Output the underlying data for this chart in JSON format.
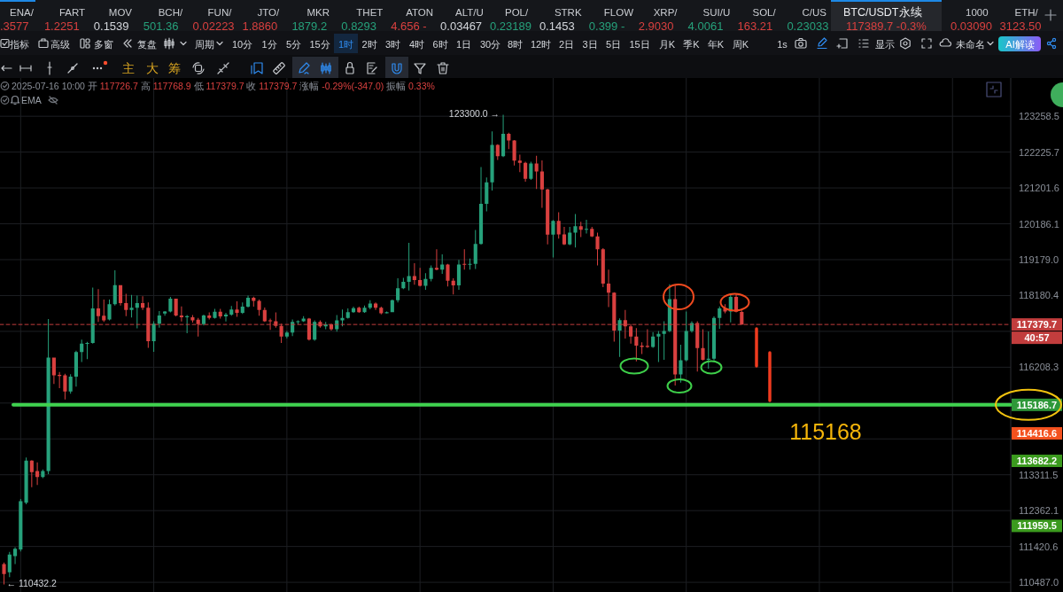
{
  "chart_data": {
    "type": "candlestick",
    "title": "BTC/USDT永续",
    "subtitle": "2025-07-16 10:00 开 117726.7 高 117768.9 低 117379.7 收 117379.7 涨幅 -0.29%(-347.0) 振幅 0.33%",
    "categories": [
      null,
      null,
      null,
      null,
      null,
      null,
      null,
      null,
      null,
      null,
      null,
      null,
      null,
      null,
      null,
      null,
      null,
      null,
      null,
      null,
      null,
      null,
      null,
      null,
      null,
      null,
      null,
      null,
      null,
      null,
      null,
      null,
      null,
      null,
      null,
      null,
      null,
      null,
      null,
      null,
      null,
      null,
      null,
      null,
      null,
      null,
      null,
      null,
      null,
      null,
      null,
      null,
      null,
      null,
      null,
      null,
      null,
      null,
      null,
      null,
      null,
      null,
      null,
      null,
      null,
      null,
      null,
      null,
      null,
      null,
      null,
      null,
      null,
      null,
      null,
      null,
      null,
      null,
      null,
      null,
      null,
      null,
      null,
      null,
      null,
      null,
      null,
      null,
      null,
      null,
      null,
      null,
      null,
      null,
      null,
      null,
      null,
      null,
      null,
      null,
      null,
      null,
      null,
      null,
      null,
      null,
      null,
      null,
      null,
      null,
      null,
      null,
      null,
      null,
      null,
      null,
      null,
      null,
      null,
      null,
      null,
      null,
      null,
      null,
      null,
      null,
      null,
      null,
      null,
      null,
      null,
      null,
      null,
      null,
      null,
      null,
      null,
      null,
      null,
      null,
      null,
      null,
      null,
      null,
      null,
      null,
      null,
      null,
      null,
      null,
      null,
      null,
      null,
      null,
      null,
      null,
      null,
      null,
      null,
      null,
      null,
      null,
      null,
      null,
      null,
      null,
      null,
      null,
      null,
      null,
      null,
      null,
      null,
      null,
      null,
      null,
      null,
      null,
      null,
      null,
      null,
      null
    ],
    "ohlc": [
      [
        110960,
        111000,
        110432.2,
        110700
      ],
      [
        110750,
        111280,
        110620,
        111210
      ],
      [
        111170,
        111400,
        110960,
        111360
      ],
      [
        111340,
        112670,
        111290,
        112610
      ],
      [
        112570,
        113770,
        112530,
        113690
      ],
      [
        113690,
        113700,
        112980,
        113380
      ],
      [
        113410,
        113640,
        113040,
        113250
      ],
      [
        113250,
        113450,
        113220,
        113410
      ],
      [
        113410,
        117530,
        113330,
        116470
      ],
      [
        116470,
        116470,
        115750,
        115990
      ],
      [
        116000,
        116080,
        115640,
        115970
      ],
      [
        115990,
        116030,
        115330,
        115550
      ],
      [
        115550,
        116020,
        115490,
        115950
      ],
      [
        115950,
        116660,
        115680,
        116620
      ],
      [
        116620,
        116960,
        116350,
        116850
      ],
      [
        116850,
        116900,
        116430,
        116870
      ],
      [
        116870,
        118400,
        116850,
        117820
      ],
      [
        117820,
        118360,
        117450,
        117610
      ],
      [
        117620,
        118070,
        117450,
        117490
      ],
      [
        117520,
        118070,
        117490,
        117940
      ],
      [
        117940,
        118880,
        117900,
        118470
      ],
      [
        118470,
        118470,
        117900,
        117970
      ],
      [
        117970,
        118230,
        117610,
        117780
      ],
      [
        117780,
        118200,
        117570,
        117840
      ],
      [
        117840,
        118180,
        117270,
        117970
      ],
      [
        117970,
        118160,
        117780,
        117840
      ],
      [
        117840,
        117990,
        116740,
        116920
      ],
      [
        116920,
        117470,
        116630,
        117400
      ],
      [
        117400,
        117750,
        117290,
        117630
      ],
      [
        117680,
        117750,
        117620,
        117740
      ],
      [
        117740,
        118140,
        117710,
        118090
      ],
      [
        118090,
        118090,
        117600,
        117630
      ],
      [
        117630,
        117880,
        117460,
        117580
      ],
      [
        117580,
        117640,
        117140,
        117610
      ],
      [
        117580,
        117640,
        117430,
        117490
      ],
      [
        117510,
        117560,
        117050,
        117390
      ],
      [
        117390,
        117650,
        117350,
        117630
      ],
      [
        117630,
        117710,
        117520,
        117560
      ],
      [
        117560,
        117810,
        117540,
        117730
      ],
      [
        117730,
        117810,
        117540,
        117600
      ],
      [
        117600,
        117700,
        117460,
        117650
      ],
      [
        117650,
        117890,
        117620,
        117790
      ],
      [
        117790,
        118020,
        117590,
        117700
      ],
      [
        117700,
        117990,
        117670,
        117870
      ],
      [
        117870,
        118180,
        117850,
        118120
      ],
      [
        118120,
        118150,
        117870,
        118030
      ],
      [
        118030,
        118070,
        117620,
        117780
      ],
      [
        117780,
        117850,
        117450,
        117470
      ],
      [
        117490,
        117540,
        117230,
        117470
      ],
      [
        117470,
        117710,
        117290,
        117340
      ],
      [
        117340,
        117400,
        116870,
        117050
      ],
      [
        117050,
        117200,
        117000,
        117160
      ],
      [
        117160,
        117520,
        117060,
        117450
      ],
      [
        117450,
        117490,
        117380,
        117470
      ],
      [
        117470,
        117610,
        117450,
        117540
      ],
      [
        117540,
        117560,
        116940,
        116960
      ],
      [
        116960,
        117490,
        116930,
        117450
      ],
      [
        117450,
        117490,
        117290,
        117330
      ],
      [
        117330,
        117450,
        117250,
        117380
      ],
      [
        117380,
        117400,
        117210,
        117250
      ],
      [
        117250,
        117640,
        117180,
        117490
      ],
      [
        117490,
        117790,
        117330,
        117560
      ],
      [
        117560,
        117820,
        117540,
        117720
      ],
      [
        117720,
        117870,
        117700,
        117830
      ],
      [
        117840,
        117870,
        117700,
        117720
      ],
      [
        117720,
        117900,
        117700,
        117840
      ],
      [
        117840,
        118050,
        117800,
        117960
      ],
      [
        117960,
        117990,
        117780,
        117840
      ],
      [
        117840,
        117870,
        117660,
        117690
      ],
      [
        117690,
        117740,
        117680,
        117720
      ],
      [
        117720,
        118070,
        117720,
        118050
      ],
      [
        118050,
        118660,
        117990,
        118380
      ],
      [
        118380,
        118670,
        118360,
        118560
      ],
      [
        118560,
        119650,
        118320,
        118720
      ],
      [
        118720,
        119080,
        118480,
        118610
      ],
      [
        118610,
        118950,
        118430,
        118450
      ],
      [
        118450,
        118800,
        118340,
        118640
      ],
      [
        118640,
        119020,
        118570,
        118950
      ],
      [
        118950,
        119470,
        118880,
        118900
      ],
      [
        118900,
        119330,
        118780,
        119040
      ],
      [
        119040,
        119060,
        118430,
        118590
      ],
      [
        118590,
        118660,
        118210,
        118460
      ],
      [
        118460,
        119170,
        118340,
        119040
      ],
      [
        119060,
        119470,
        118900,
        119040
      ],
      [
        119040,
        119210,
        118900,
        119060
      ],
      [
        119060,
        120010,
        118920,
        119620
      ],
      [
        119620,
        121800,
        119600,
        120750
      ],
      [
        120750,
        121500,
        120540,
        121360
      ],
      [
        121360,
        122820,
        121130,
        122430
      ],
      [
        122430,
        122450,
        122000,
        122110
      ],
      [
        122110,
        123300,
        122080,
        122750
      ],
      [
        122750,
        122780,
        122310,
        122560
      ],
      [
        122560,
        122570,
        121840,
        121980
      ],
      [
        121980,
        122150,
        121650,
        121920
      ],
      [
        121920,
        121950,
        121380,
        121460
      ],
      [
        121460,
        121950,
        121430,
        121900
      ],
      [
        121900,
        122120,
        121170,
        121670
      ],
      [
        121670,
        121990,
        120640,
        121160
      ],
      [
        121160,
        121180,
        119610,
        119880
      ],
      [
        119880,
        120290,
        119240,
        120270
      ],
      [
        120270,
        120510,
        119770,
        119890
      ],
      [
        119890,
        120100,
        119590,
        119610
      ],
      [
        119610,
        120100,
        119580,
        119940
      ],
      [
        119940,
        120460,
        119520,
        120120
      ],
      [
        120120,
        120240,
        119810,
        120020
      ],
      [
        120020,
        120300,
        119910,
        120040
      ],
      [
        120040,
        120100,
        119810,
        119830
      ],
      [
        119830,
        119940,
        119020,
        119470
      ],
      [
        119470,
        119500,
        118410,
        118510
      ],
      [
        118510,
        118900,
        117860,
        118260
      ],
      [
        118260,
        118270,
        116910,
        117210
      ],
      [
        117210,
        117550,
        116490,
        117500
      ],
      [
        117500,
        117780,
        116990,
        117330
      ],
      [
        117330,
        117390,
        116850,
        117050
      ],
      [
        117050,
        117280,
        116370,
        116800
      ],
      [
        116800,
        116890,
        116570,
        116760
      ],
      [
        116790,
        117250,
        116740,
        116760
      ],
      [
        116760,
        117170,
        116740,
        117050
      ],
      [
        117050,
        117200,
        116350,
        117120
      ],
      [
        117120,
        117470,
        116410,
        117200
      ],
      [
        117200,
        118490,
        117170,
        118080
      ],
      [
        118080,
        118460,
        115710,
        116010
      ],
      [
        116010,
        116820,
        115790,
        116400
      ],
      [
        116400,
        117740,
        116370,
        117200
      ],
      [
        117200,
        117470,
        117160,
        117420
      ],
      [
        117420,
        117470,
        116090,
        116730
      ],
      [
        116730,
        117250,
        116390,
        116410
      ],
      [
        116410,
        117190,
        116170,
        116440
      ],
      [
        116440,
        117600,
        116390,
        117560
      ],
      [
        117560,
        117880,
        117260,
        117820
      ],
      [
        117820,
        117940,
        117690,
        117740
      ],
      [
        117740,
        118220,
        117440,
        118140
      ],
      [
        118140,
        118220,
        117710,
        117730
      ],
      [
        117726.7,
        117768.9,
        117379.7,
        117379.7
      ],
      null,
      null,
      null,
      null,
      null,
      null,
      null,
      null,
      null,
      null,
      null,
      null,
      null,
      null,
      null,
      null,
      null,
      null,
      null,
      null,
      null,
      null,
      null,
      null,
      null,
      null,
      null,
      null,
      null,
      null,
      null,
      null,
      null,
      null,
      null,
      null,
      null,
      null,
      null,
      null,
      null,
      null,
      null,
      null,
      null,
      null,
      null,
      null
    ],
    "colors": [
      "#d9403f",
      "#26a17b",
      "#26a17b",
      "#26a17b",
      "#26a17b",
      "#d9403f",
      "#d9403f",
      "#26a17b",
      "#26a17b",
      "#d9403f",
      "#d9403f",
      "#d9403f",
      "#26a17b",
      "#26a17b",
      "#26a17b",
      "#26a17b",
      "#26a17b",
      "#d9403f",
      "#d9403f",
      "#26a17b",
      "#26a17b",
      "#d9403f",
      "#d9403f",
      "#26a17b",
      "#26a17b",
      "#d9403f",
      "#d9403f",
      "#26a17b",
      "#26a17b",
      "#26a17b",
      "#26a17b",
      "#d9403f",
      "#d9403f",
      "#26a17b",
      "#d9403f",
      "#d9403f",
      "#26a17b",
      "#d9403f",
      "#26a17b",
      "#d9403f",
      "#26a17b",
      "#26a17b",
      "#d9403f",
      "#26a17b",
      "#26a17b",
      "#d9403f",
      "#d9403f",
      "#d9403f",
      "#d9403f",
      "#d9403f",
      "#d9403f",
      "#26a17b",
      "#26a17b",
      "#26a17b",
      "#26a17b",
      "#d9403f",
      "#26a17b",
      "#d9403f",
      "#26a17b",
      "#d9403f",
      "#26a17b",
      "#26a17b",
      "#26a17b",
      "#26a17b",
      "#d9403f",
      "#26a17b",
      "#26a17b",
      "#d9403f",
      "#d9403f",
      "#26a17b",
      "#26a17b",
      "#26a17b",
      "#26a17b",
      "#26a17b",
      "#d9403f",
      "#d9403f",
      "#26a17b",
      "#26a17b",
      "#d9403f",
      "#26a17b",
      "#d9403f",
      "#d9403f",
      "#26a17b",
      "#d9403f",
      "#26a17b",
      "#26a17b",
      "#26a17b",
      "#26a17b",
      "#26a17b",
      "#d9403f",
      "#26a17b",
      "#d9403f",
      "#d9403f",
      "#d9403f",
      "#d9403f",
      "#26a17b",
      "#d9403f",
      "#d9403f",
      "#d9403f",
      "#26a17b",
      "#d9403f",
      "#d9403f",
      "#26a17b",
      "#26a17b",
      "#d9403f",
      "#26a17b",
      "#d9403f",
      "#d9403f",
      "#d9403f",
      "#d9403f",
      "#d9403f",
      "#26a17b",
      "#d9403f",
      "#d9403f",
      "#d9403f",
      "#d9403f",
      "#d9403f",
      "#26a17b",
      "#26a17b",
      "#26a17b",
      "#26a17b",
      "#d9403f",
      "#26a17b",
      "#26a17b",
      "#26a17b",
      "#d9403f",
      "#d9403f",
      "#26a17b",
      "#26a17b",
      "#26a17b",
      "#d9403f",
      "#26a17b",
      "#d9403f",
      "#d9403f",
      null,
      null,
      null,
      null,
      null,
      null,
      null,
      null,
      null,
      null,
      null,
      null,
      null,
      null,
      null,
      null,
      null,
      null,
      null,
      null,
      null,
      null,
      null,
      null,
      null,
      null,
      null,
      null,
      null,
      null,
      null,
      null,
      null,
      null,
      null,
      null,
      null,
      null,
      null,
      null,
      null,
      null,
      null,
      null,
      null,
      null,
      null,
      null
    ],
    "log": true,
    "ylim": [
      110420,
      124370
    ],
    "yticks": [
      123258.5,
      122225.7,
      121201.6,
      120186.1,
      {
        "value": 119179,
        "label": "119179.0"
      },
      118180.4,
      {
        "value": 117190.1,
        "label": null
      },
      116208.3,
      {
        "value": 115234.6,
        "label": null
      },
      {
        "value": 114269,
        "label": null
      },
      113311.5,
      112362.1,
      111420.6,
      {
        "value": 110487,
        "label": "110487.0"
      }
    ],
    "grid": true,
    "ref_lines": [
      {
        "axis": "y",
        "value": 117379.7,
        "label": "117379.7",
        "color": "#c23d3d",
        "line_style": "dashed"
      },
      {
        "axis": "y",
        "value": 115186.7,
        "label": "115186.7",
        "color": "#3fd24f",
        "line_style": "solid"
      }
    ],
    "annotations": [
      "115168",
      "123300.0 →",
      "← 110432.2",
      "114416.6",
      "113682.2",
      "111959.5",
      "40:57",
      "117389.7 -0.3%",
      "EMA",
      "ENA/",
      ".3577",
      "FART",
      "1.2251",
      "MOV",
      "0.1539",
      "BCH/",
      "501.36",
      "FUN/",
      "0.02223",
      "JTO/",
      "1.8860",
      "MKR",
      "1879.2",
      "THET",
      "0.8293",
      "ATON",
      "4.656 -",
      "ALT/U",
      "0.03467",
      "POL/",
      "0.23189",
      "STRK",
      "0.1453",
      "FLOW",
      "0.399 -",
      "XRP/",
      "2.9030",
      "SUI/U",
      "4.0061",
      "SOL/",
      "163.21",
      "C/US",
      "0.23033",
      "1000",
      "0.03090",
      "ETH/",
      "3123.50",
      "指标",
      "高级",
      "多窗",
      "复盘",
      "周期",
      "10分",
      "1分",
      "5分",
      "15分",
      "1时",
      "2时",
      "3时",
      "4时",
      "6时",
      "1日",
      "30分",
      "8时",
      "12时",
      "2日",
      "3日",
      "5日",
      "15日",
      "月K",
      "季K",
      "年K",
      "周K",
      "1s",
      "显示",
      "未命名",
      "AI解读",
      "主",
      "大",
      "筹"
    ]
  }
}
